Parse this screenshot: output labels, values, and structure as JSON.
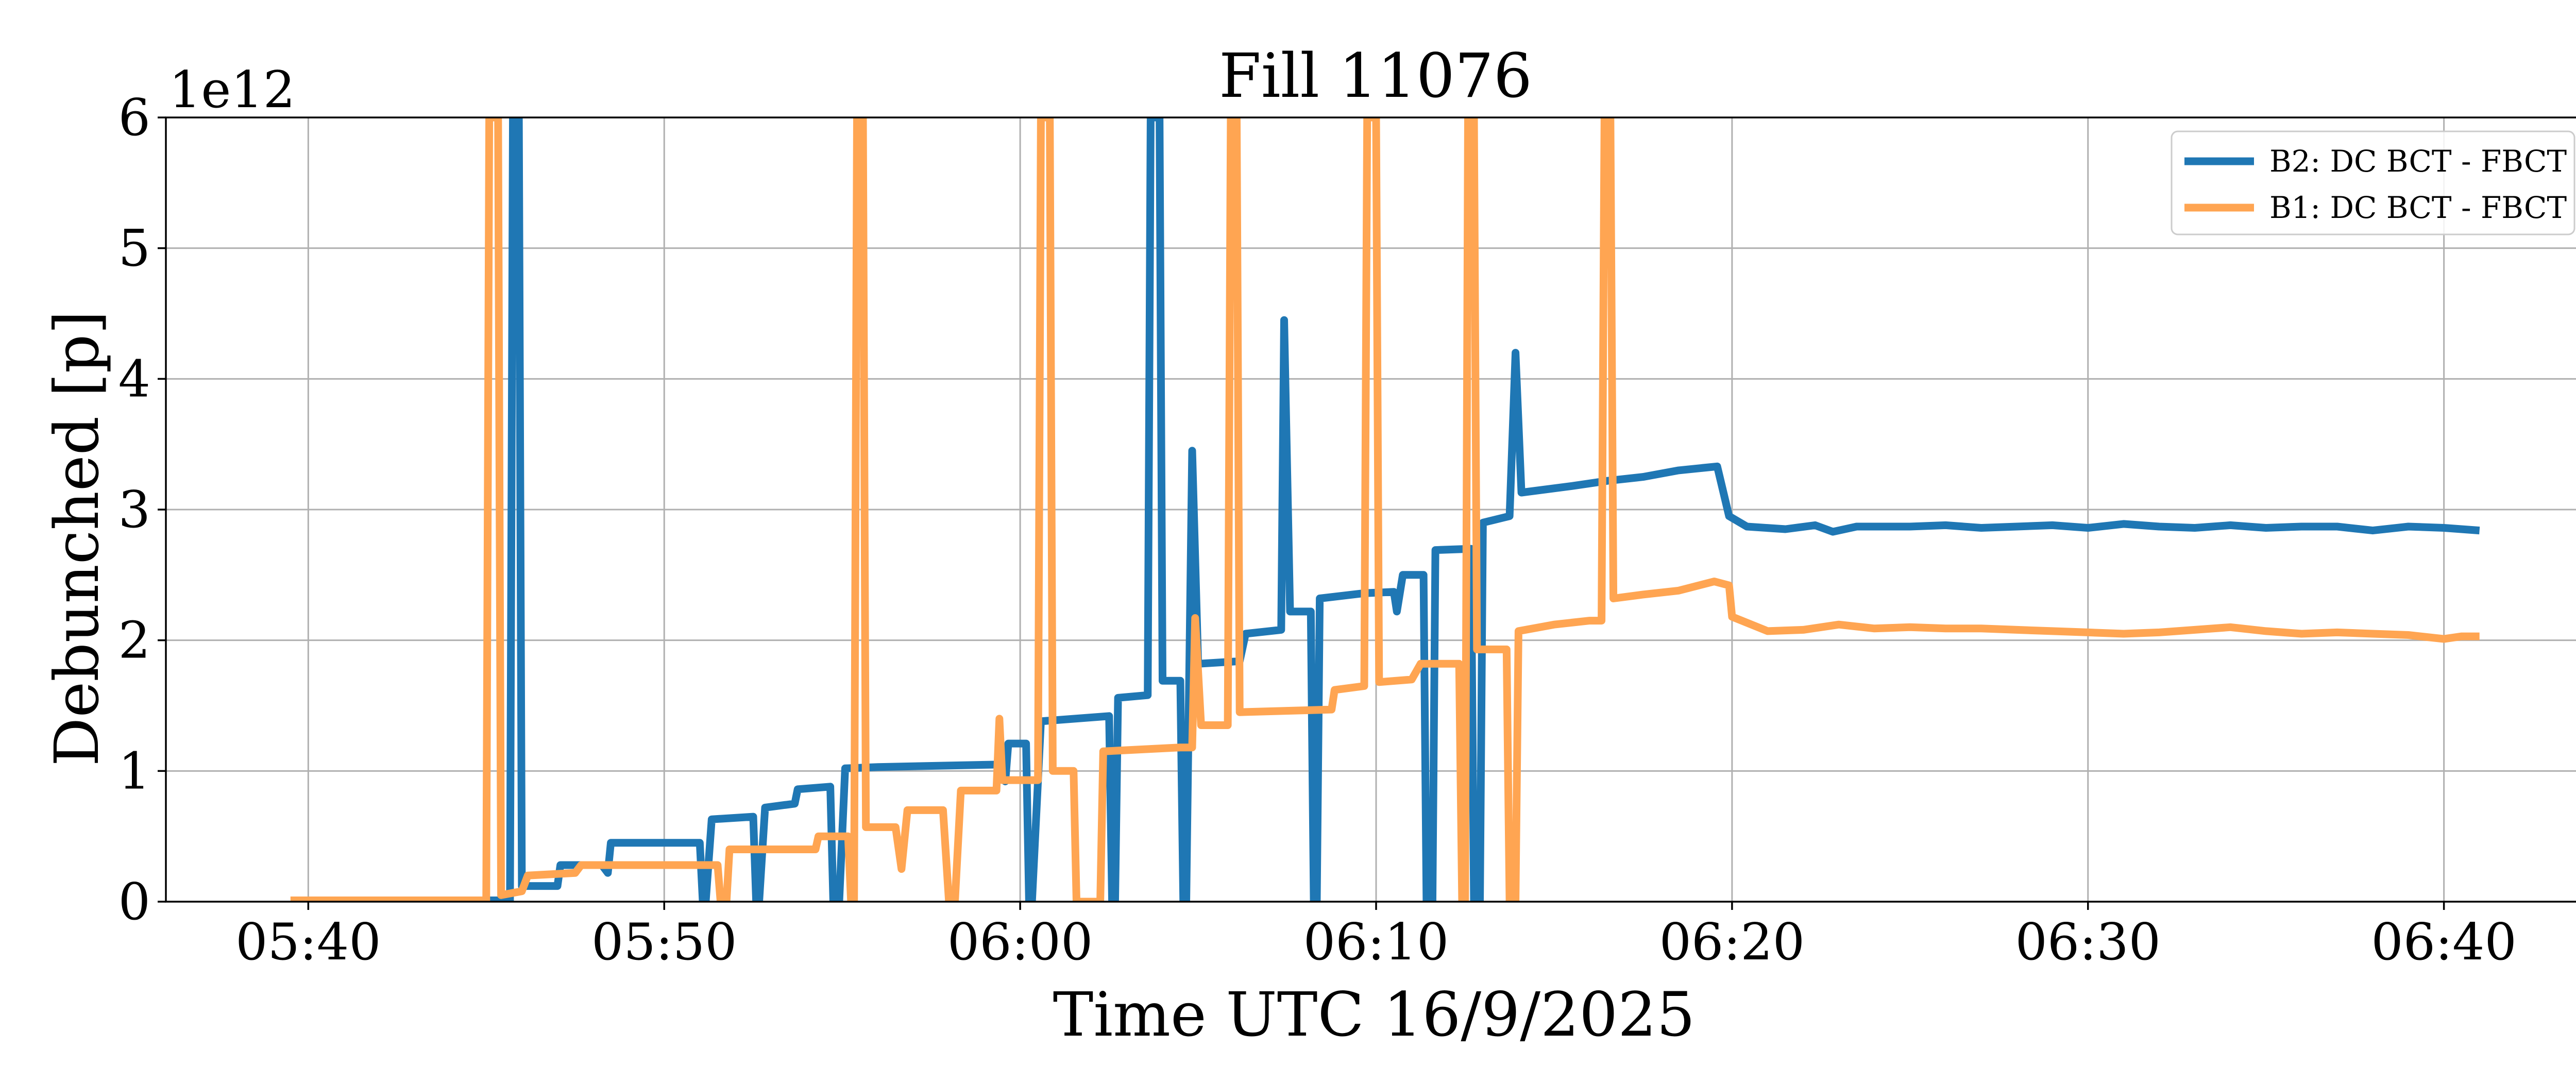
{
  "chart_data": {
    "type": "line",
    "title": "Fill 11076",
    "xlabel": "Time UTC 16/9/2025",
    "ylabel": "Debunched [p]",
    "y_offset_text": "1e12",
    "y_multiplier": 1000000000000.0,
    "xlim": [
      "05:36:00",
      "06:44:00"
    ],
    "ylim": [
      0,
      6
    ],
    "x_ticks": [
      "05:40",
      "05:50",
      "06:00",
      "06:10",
      "06:20",
      "06:30",
      "06:40"
    ],
    "y_ticks": [
      0,
      1,
      2,
      3,
      4,
      5,
      6
    ],
    "y_tick_labels": [
      "0",
      "1",
      "2",
      "3",
      "4",
      "5",
      "6"
    ],
    "grid": true,
    "legend_placement": "top-right",
    "series": [
      {
        "name": "B2: DC BCT - FBCT",
        "color": "#1f77b4",
        "points": [
          [
            "05:40:30",
            0.01
          ],
          [
            "05:45:40",
            0.01
          ],
          [
            "05:45:45",
            6.0
          ],
          [
            "05:45:55",
            6.0
          ],
          [
            "05:46:00",
            0.12
          ],
          [
            "05:47:00",
            0.12
          ],
          [
            "05:47:05",
            0.28
          ],
          [
            "05:48:15",
            0.28
          ],
          [
            "05:48:25",
            0.22
          ],
          [
            "05:48:30",
            0.45
          ],
          [
            "05:51:00",
            0.45
          ],
          [
            "05:51:05",
            0.0
          ],
          [
            "05:51:10",
            0.0
          ],
          [
            "05:51:20",
            0.63
          ],
          [
            "05:52:30",
            0.65
          ],
          [
            "05:52:35",
            0.0
          ],
          [
            "05:52:40",
            0.0
          ],
          [
            "05:52:50",
            0.72
          ],
          [
            "05:53:40",
            0.75
          ],
          [
            "05:53:45",
            0.86
          ],
          [
            "05:54:40",
            0.88
          ],
          [
            "05:54:45",
            0.0
          ],
          [
            "05:54:55",
            0.0
          ],
          [
            "05:55:05",
            1.02
          ],
          [
            "05:56:00",
            1.03
          ],
          [
            "05:59:30",
            1.05
          ],
          [
            "05:59:35",
            0.92
          ],
          [
            "05:59:40",
            1.21
          ],
          [
            "06:00:10",
            1.21
          ],
          [
            "06:00:15",
            0.0
          ],
          [
            "06:00:20",
            0.0
          ],
          [
            "06:00:35",
            1.38
          ],
          [
            "06:02:30",
            1.42
          ],
          [
            "06:02:35",
            0.0
          ],
          [
            "06:02:40",
            0.0
          ],
          [
            "06:02:45",
            1.56
          ],
          [
            "06:03:35",
            1.58
          ],
          [
            "06:03:40",
            6.0
          ],
          [
            "06:03:55",
            6.0
          ],
          [
            "06:04:00",
            1.69
          ],
          [
            "06:04:30",
            1.69
          ],
          [
            "06:04:35",
            0.0
          ],
          [
            "06:04:40",
            0.0
          ],
          [
            "06:04:50",
            3.45
          ],
          [
            "06:05:00",
            1.82
          ],
          [
            "06:06:10",
            1.84
          ],
          [
            "06:06:20",
            2.05
          ],
          [
            "06:07:20",
            2.08
          ],
          [
            "06:07:25",
            4.45
          ],
          [
            "06:07:35",
            2.22
          ],
          [
            "06:08:10",
            2.22
          ],
          [
            "06:08:15",
            0.0
          ],
          [
            "06:08:20",
            0.0
          ],
          [
            "06:08:25",
            2.32
          ],
          [
            "06:09:40",
            2.36
          ],
          [
            "06:10:30",
            2.37
          ],
          [
            "06:10:35",
            2.22
          ],
          [
            "06:10:45",
            2.5
          ],
          [
            "06:11:20",
            2.5
          ],
          [
            "06:11:25",
            0.0
          ],
          [
            "06:11:35",
            0.0
          ],
          [
            "06:11:40",
            2.69
          ],
          [
            "06:12:40",
            2.7
          ],
          [
            "06:12:45",
            0.0
          ],
          [
            "06:12:55",
            0.0
          ],
          [
            "06:13:00",
            2.9
          ],
          [
            "06:13:45",
            2.95
          ],
          [
            "06:13:55",
            4.2
          ],
          [
            "06:14:05",
            3.13
          ],
          [
            "06:15:30",
            3.18
          ],
          [
            "06:16:30",
            3.22
          ],
          [
            "06:17:30",
            3.25
          ],
          [
            "06:18:30",
            3.3
          ],
          [
            "06:19:35",
            3.33
          ],
          [
            "06:19:55",
            2.95
          ],
          [
            "06:20:25",
            2.87
          ],
          [
            "06:21:30",
            2.85
          ],
          [
            "06:22:20",
            2.88
          ],
          [
            "06:22:50",
            2.83
          ],
          [
            "06:23:30",
            2.87
          ],
          [
            "06:25:00",
            2.87
          ],
          [
            "06:26:00",
            2.88
          ],
          [
            "06:27:00",
            2.86
          ],
          [
            "06:28:00",
            2.87
          ],
          [
            "06:29:00",
            2.88
          ],
          [
            "06:30:00",
            2.86
          ],
          [
            "06:31:00",
            2.89
          ],
          [
            "06:32:00",
            2.87
          ],
          [
            "06:33:00",
            2.86
          ],
          [
            "06:34:00",
            2.88
          ],
          [
            "06:35:00",
            2.86
          ],
          [
            "06:36:00",
            2.87
          ],
          [
            "06:37:00",
            2.87
          ],
          [
            "06:38:00",
            2.84
          ],
          [
            "06:39:00",
            2.87
          ],
          [
            "06:40:00",
            2.86
          ],
          [
            "06:41:00",
            2.84
          ]
        ]
      },
      {
        "name": "B1: DC BCT - FBCT",
        "color": "#ffa552",
        "points": [
          [
            "05:39:30",
            0.01
          ],
          [
            "05:45:00",
            0.01
          ],
          [
            "05:45:05",
            6.0
          ],
          [
            "05:45:20",
            6.0
          ],
          [
            "05:45:25",
            0.05
          ],
          [
            "05:46:00",
            0.08
          ],
          [
            "05:46:10",
            0.2
          ],
          [
            "05:47:30",
            0.22
          ],
          [
            "05:47:40",
            0.28
          ],
          [
            "05:51:30",
            0.28
          ],
          [
            "05:51:35",
            0.0
          ],
          [
            "05:51:45",
            0.0
          ],
          [
            "05:51:50",
            0.4
          ],
          [
            "05:54:15",
            0.4
          ],
          [
            "05:54:20",
            0.5
          ],
          [
            "05:55:10",
            0.5
          ],
          [
            "05:55:15",
            0.0
          ],
          [
            "05:55:20",
            0.0
          ],
          [
            "05:55:25",
            6.0
          ],
          [
            "05:55:35",
            6.0
          ],
          [
            "05:55:40",
            0.57
          ],
          [
            "05:56:30",
            0.57
          ],
          [
            "05:56:40",
            0.25
          ],
          [
            "05:56:50",
            0.7
          ],
          [
            "05:57:50",
            0.7
          ],
          [
            "05:58:00",
            0.0
          ],
          [
            "05:58:10",
            0.0
          ],
          [
            "05:58:20",
            0.85
          ],
          [
            "05:59:20",
            0.85
          ],
          [
            "05:59:25",
            1.4
          ],
          [
            "05:59:30",
            0.93
          ],
          [
            "06:00:30",
            0.93
          ],
          [
            "06:00:35",
            6.0
          ],
          [
            "06:00:50",
            6.0
          ],
          [
            "06:00:55",
            1.0
          ],
          [
            "06:01:30",
            1.0
          ],
          [
            "06:01:35",
            0.0
          ],
          [
            "06:02:15",
            0.0
          ],
          [
            "06:02:20",
            1.15
          ],
          [
            "06:04:30",
            1.18
          ],
          [
            "06:04:50",
            1.18
          ],
          [
            "06:04:55",
            2.17
          ],
          [
            "06:05:05",
            1.35
          ],
          [
            "06:05:50",
            1.35
          ],
          [
            "06:05:55",
            6.0
          ],
          [
            "06:06:05",
            6.0
          ],
          [
            "06:06:10",
            1.45
          ],
          [
            "06:08:45",
            1.47
          ],
          [
            "06:08:50",
            1.62
          ],
          [
            "06:09:40",
            1.65
          ],
          [
            "06:09:45",
            6.0
          ],
          [
            "06:10:00",
            6.0
          ],
          [
            "06:10:05",
            1.68
          ],
          [
            "06:11:00",
            1.7
          ],
          [
            "06:11:15",
            1.82
          ],
          [
            "06:12:20",
            1.82
          ],
          [
            "06:12:25",
            0.0
          ],
          [
            "06:12:30",
            0.0
          ],
          [
            "06:12:35",
            6.0
          ],
          [
            "06:12:45",
            6.0
          ],
          [
            "06:12:50",
            1.93
          ],
          [
            "06:13:40",
            1.93
          ],
          [
            "06:13:45",
            0.0
          ],
          [
            "06:13:55",
            0.0
          ],
          [
            "06:14:00",
            2.07
          ],
          [
            "06:15:00",
            2.12
          ],
          [
            "06:16:00",
            2.15
          ],
          [
            "06:16:20",
            2.15
          ],
          [
            "06:16:25",
            6.0
          ],
          [
            "06:16:35",
            6.0
          ],
          [
            "06:16:40",
            2.32
          ],
          [
            "06:17:30",
            2.35
          ],
          [
            "06:18:30",
            2.38
          ],
          [
            "06:19:30",
            2.45
          ],
          [
            "06:19:55",
            2.42
          ],
          [
            "06:20:00",
            2.18
          ],
          [
            "06:21:00",
            2.07
          ],
          [
            "06:22:00",
            2.08
          ],
          [
            "06:23:00",
            2.12
          ],
          [
            "06:24:00",
            2.09
          ],
          [
            "06:25:00",
            2.1
          ],
          [
            "06:26:00",
            2.09
          ],
          [
            "06:27:00",
            2.09
          ],
          [
            "06:28:00",
            2.08
          ],
          [
            "06:29:00",
            2.07
          ],
          [
            "06:30:00",
            2.06
          ],
          [
            "06:31:00",
            2.05
          ],
          [
            "06:32:00",
            2.06
          ],
          [
            "06:33:00",
            2.08
          ],
          [
            "06:34:00",
            2.1
          ],
          [
            "06:35:00",
            2.07
          ],
          [
            "06:36:00",
            2.05
          ],
          [
            "06:37:00",
            2.06
          ],
          [
            "06:38:00",
            2.05
          ],
          [
            "06:39:00",
            2.04
          ],
          [
            "06:40:00",
            2.01
          ],
          [
            "06:40:30",
            2.03
          ],
          [
            "06:41:00",
            2.03
          ]
        ]
      }
    ]
  }
}
